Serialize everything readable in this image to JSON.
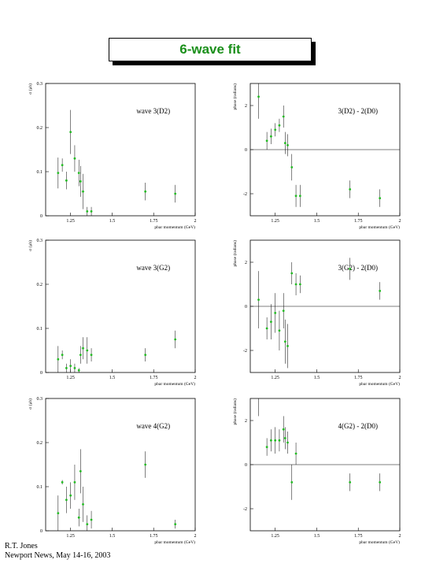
{
  "header": {
    "title": "6-wave fit"
  },
  "footer": {
    "author": "R.T. Jones",
    "event": "Newport News, May 14-16, 2003"
  },
  "colors": {
    "points": "#22bb22",
    "axes": "#000000",
    "title": "#1a8f1a"
  },
  "chart_data": [
    {
      "type": "scatter",
      "annotation": "wave 3(D2)",
      "ylabel": "σ (μb)",
      "xlabel": "pbar momentum (GeV)",
      "xlim": [
        1.1,
        2.0
      ],
      "ylim": [
        0,
        0.3
      ],
      "xticks": [
        1.25,
        1.5,
        1.75,
        2
      ],
      "xtick_labels": [
        "1.25",
        "1.5",
        "1.75",
        "2"
      ],
      "yticks": [
        0,
        0.1,
        0.2,
        0.3
      ],
      "ytick_labels": [
        "0",
        "0.1",
        "0.2",
        "0.3"
      ],
      "zero_line": false,
      "x": [
        1.175,
        1.2,
        1.225,
        1.25,
        1.275,
        1.3,
        1.31,
        1.325,
        1.35,
        1.375,
        1.7,
        1.88
      ],
      "y": [
        0.097,
        0.115,
        0.08,
        0.19,
        0.13,
        0.097,
        0.078,
        0.055,
        0.01,
        0.01,
        0.055,
        0.05
      ],
      "err": [
        0.035,
        0.015,
        0.02,
        0.05,
        0.03,
        0.03,
        0.035,
        0.04,
        0.01,
        0.01,
        0.02,
        0.02
      ]
    },
    {
      "type": "scatter",
      "annotation": "3(D2) - 2(D0)",
      "ylabel": "phase (radians)",
      "xlabel": "pbar momentum (GeV)",
      "xlim": [
        1.1,
        2.0
      ],
      "ylim": [
        -3.0,
        3.0
      ],
      "xticks": [
        1.25,
        1.5,
        1.75,
        2
      ],
      "xtick_labels": [
        "1.25",
        "1.5",
        "1.75",
        "2"
      ],
      "yticks": [
        -2,
        0,
        2
      ],
      "ytick_labels": [
        "-2",
        "0",
        "2"
      ],
      "zero_line": true,
      "x": [
        1.15,
        1.2,
        1.225,
        1.25,
        1.275,
        1.3,
        1.31,
        1.325,
        1.35,
        1.375,
        1.4,
        1.7,
        1.88
      ],
      "y": [
        2.4,
        0.4,
        0.6,
        0.9,
        1.1,
        1.5,
        0.3,
        0.2,
        -0.8,
        -2.1,
        -2.1,
        -1.8,
        -2.2
      ],
      "err": [
        1.0,
        0.4,
        0.35,
        0.3,
        0.3,
        0.5,
        0.5,
        0.5,
        0.6,
        0.5,
        0.5,
        0.4,
        0.4
      ]
    },
    {
      "type": "scatter",
      "annotation": "wave 3(G2)",
      "ylabel": "σ (μb)",
      "xlabel": "pbar momentum (GeV)",
      "xlim": [
        1.1,
        2.0
      ],
      "ylim": [
        0,
        0.3
      ],
      "xticks": [
        1.25,
        1.5,
        1.75,
        2
      ],
      "xtick_labels": [
        "1.25",
        "1.5",
        "1.75",
        "2"
      ],
      "yticks": [
        0,
        0.1,
        0.2,
        0.3
      ],
      "ytick_labels": [
        "0",
        "0.1",
        "0.2",
        "0.3"
      ],
      "zero_line": false,
      "x": [
        1.175,
        1.2,
        1.225,
        1.25,
        1.275,
        1.3,
        1.31,
        1.325,
        1.35,
        1.375,
        1.7,
        1.88
      ],
      "y": [
        0.03,
        0.04,
        0.01,
        0.015,
        0.01,
        0.005,
        0.04,
        0.055,
        0.05,
        0.04,
        0.04,
        0.075
      ],
      "err": [
        0.03,
        0.01,
        0.01,
        0.015,
        0.01,
        0.005,
        0.02,
        0.025,
        0.03,
        0.015,
        0.015,
        0.02
      ]
    },
    {
      "type": "scatter",
      "annotation": "3(G2) - 2(D0)",
      "ylabel": "phase (radians)",
      "xlabel": "pbar momentum (GeV)",
      "xlim": [
        1.1,
        2.0
      ],
      "ylim": [
        -3.0,
        3.0
      ],
      "xticks": [
        1.25,
        1.5,
        1.75,
        2
      ],
      "xtick_labels": [
        "1.25",
        "1.5",
        "1.75",
        "2"
      ],
      "yticks": [
        -2,
        0,
        2
      ],
      "ytick_labels": [
        "-2",
        "0",
        "2"
      ],
      "zero_line": true,
      "x": [
        1.15,
        1.2,
        1.225,
        1.25,
        1.275,
        1.3,
        1.31,
        1.325,
        1.35,
        1.375,
        1.4,
        1.7,
        1.88
      ],
      "y": [
        0.3,
        -1.0,
        -0.7,
        -0.3,
        -1.1,
        -0.2,
        -1.6,
        -1.8,
        1.5,
        1.0,
        1.0,
        1.7,
        0.7
      ],
      "err": [
        1.3,
        0.5,
        0.8,
        0.9,
        0.9,
        0.8,
        1.0,
        1.0,
        0.5,
        0.5,
        0.4,
        0.5,
        0.4
      ]
    },
    {
      "type": "scatter",
      "annotation": "wave 4(G2)",
      "ylabel": "σ (μb)",
      "xlabel": "pbar momentum (GeV)",
      "xlim": [
        1.1,
        2.0
      ],
      "ylim": [
        0,
        0.3
      ],
      "xticks": [
        1.25,
        1.5,
        1.75,
        2
      ],
      "xtick_labels": [
        "1.25",
        "1.5",
        "1.75",
        "2"
      ],
      "yticks": [
        0,
        0.1,
        0.2,
        0.3
      ],
      "ytick_labels": [
        "0",
        "0.1",
        "0.2",
        "0.3"
      ],
      "zero_line": false,
      "x": [
        1.175,
        1.2,
        1.225,
        1.25,
        1.275,
        1.3,
        1.31,
        1.325,
        1.35,
        1.375,
        1.7,
        1.88
      ],
      "y": [
        0.04,
        0.11,
        0.07,
        0.08,
        0.11,
        0.03,
        0.135,
        0.06,
        0.015,
        0.025,
        0.15,
        0.015
      ],
      "err": [
        0.04,
        0.005,
        0.03,
        0.03,
        0.04,
        0.02,
        0.05,
        0.04,
        0.02,
        0.02,
        0.03,
        0.01
      ]
    },
    {
      "type": "scatter",
      "annotation": "4(G2) - 2(D0)",
      "ylabel": "phase (radians)",
      "xlabel": "pbar momentum (GeV)",
      "xlim": [
        1.1,
        2.0
      ],
      "ylim": [
        -3.0,
        3.0
      ],
      "xticks": [
        1.25,
        1.5,
        1.75,
        2
      ],
      "xtick_labels": [
        "1.25",
        "1.5",
        "1.75",
        "2"
      ],
      "yticks": [
        -2,
        0,
        2
      ],
      "ytick_labels": [
        "-2",
        "0",
        "2"
      ],
      "zero_line": true,
      "x": [
        1.15,
        1.2,
        1.225,
        1.25,
        1.275,
        1.3,
        1.31,
        1.325,
        1.35,
        1.375,
        1.7,
        1.88
      ],
      "y": [
        3.3,
        0.8,
        1.1,
        1.1,
        1.1,
        1.6,
        1.2,
        1.0,
        -0.8,
        0.5,
        -0.8,
        -0.8
      ],
      "err": [
        1.1,
        0.4,
        0.5,
        0.6,
        0.5,
        0.6,
        0.5,
        0.5,
        0.8,
        0.5,
        0.4,
        0.4
      ]
    }
  ]
}
